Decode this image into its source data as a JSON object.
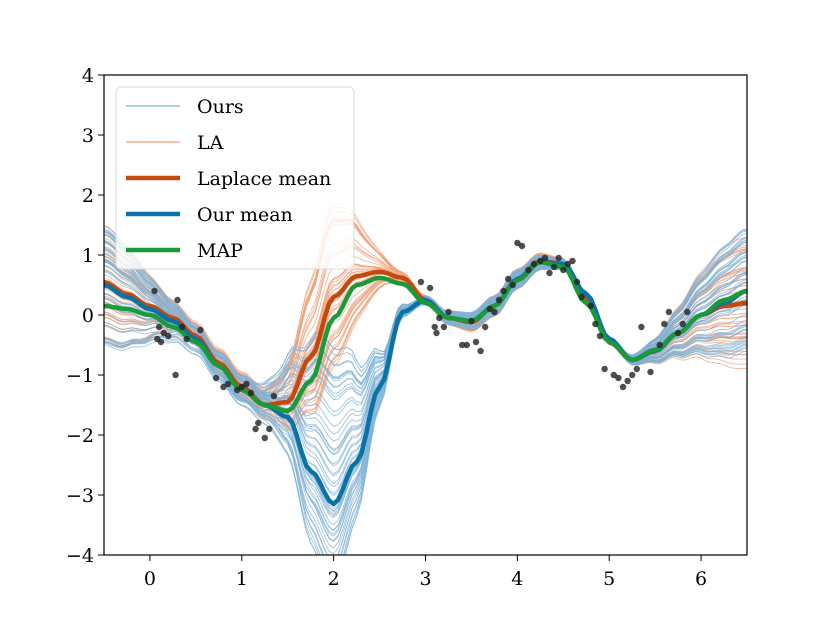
{
  "chart_data": {
    "type": "line",
    "xlim": [
      -0.5,
      6.5
    ],
    "ylim": [
      -4,
      4
    ],
    "xticks": [
      0,
      1,
      2,
      3,
      4,
      5,
      6
    ],
    "yticks": [
      4,
      3,
      2,
      1,
      0,
      -1,
      -2,
      -3,
      -4
    ],
    "xtick_labels": [
      "0",
      "1",
      "2",
      "3",
      "4",
      "5",
      "6"
    ],
    "ytick_labels": [
      "4",
      "3",
      "2",
      "1",
      "0",
      "−1",
      "−2",
      "−3",
      "−4"
    ],
    "legend_position": "top-left",
    "colors": {
      "ours": "#7fb2d5",
      "la": "#f0a07a",
      "laplace_mean": "#c4490f",
      "our_mean": "#0b72a6",
      "map": "#1b9a3a",
      "points": "#222222"
    },
    "legend": [
      {
        "key": "ours",
        "label": "Ours",
        "style": "thin"
      },
      {
        "key": "la",
        "label": "LA",
        "style": "thin"
      },
      {
        "key": "laplace_mean",
        "label": "Laplace mean",
        "style": "thick"
      },
      {
        "key": "our_mean",
        "label": "Our mean",
        "style": "thick"
      },
      {
        "key": "map",
        "label": "MAP",
        "style": "thick"
      }
    ],
    "series": [
      {
        "name": "Laplace mean",
        "key": "laplace_mean",
        "x": [
          -0.5,
          -0.25,
          0,
          0.25,
          0.5,
          0.75,
          1,
          1.25,
          1.5,
          1.75,
          2,
          2.25,
          2.5,
          2.75,
          3,
          3.25,
          3.5,
          3.75,
          4,
          4.25,
          4.5,
          4.75,
          5,
          5.25,
          5.5,
          5.75,
          6,
          6.25,
          6.5
        ],
        "y": [
          0.55,
          0.35,
          0.15,
          -0.05,
          -0.35,
          -0.8,
          -1.2,
          -1.5,
          -1.45,
          -0.7,
          0.3,
          0.65,
          0.72,
          0.62,
          0.25,
          -0.05,
          -0.12,
          0.15,
          0.6,
          0.9,
          0.85,
          0.3,
          -0.45,
          -0.75,
          -0.6,
          -0.3,
          0,
          0.15,
          0.2
        ]
      },
      {
        "name": "Our mean",
        "key": "our_mean",
        "x": [
          -0.5,
          -0.25,
          0,
          0.25,
          0.5,
          0.75,
          1,
          1.25,
          1.5,
          1.75,
          2,
          2.25,
          2.5,
          2.75,
          3,
          3.25,
          3.5,
          3.75,
          4,
          4.25,
          4.5,
          4.75,
          5,
          5.25,
          5.5,
          5.75,
          6,
          6.25,
          6.5
        ],
        "y": [
          0.5,
          0.3,
          0.1,
          -0.1,
          -0.4,
          -0.85,
          -1.25,
          -1.5,
          -1.7,
          -2.6,
          -3.15,
          -2.45,
          -1.2,
          0.05,
          0.25,
          -0.05,
          -0.1,
          0.15,
          0.6,
          0.88,
          0.85,
          0.35,
          -0.4,
          -0.75,
          -0.6,
          -0.3,
          0,
          0.2,
          0.4
        ]
      },
      {
        "name": "MAP",
        "key": "map",
        "x": [
          -0.5,
          -0.25,
          0,
          0.25,
          0.5,
          0.75,
          1,
          1.25,
          1.5,
          1.75,
          2,
          2.25,
          2.5,
          2.75,
          3,
          3.25,
          3.5,
          3.75,
          4,
          4.25,
          4.5,
          4.75,
          5,
          5.25,
          5.5,
          5.75,
          6,
          6.25,
          6.5
        ],
        "y": [
          0.15,
          0.1,
          0,
          -0.2,
          -0.45,
          -0.85,
          -1.25,
          -1.5,
          -1.6,
          -1.1,
          -0.05,
          0.5,
          0.62,
          0.52,
          0.2,
          -0.05,
          -0.1,
          0.15,
          0.58,
          0.88,
          0.8,
          0.2,
          -0.45,
          -0.75,
          -0.58,
          -0.3,
          0,
          0.25,
          0.4
        ]
      }
    ],
    "points": {
      "x": [
        0.05,
        0.08,
        0.1,
        0.12,
        0.15,
        0.2,
        0.3,
        0.28,
        0.35,
        0.4,
        0.55,
        0.72,
        0.8,
        0.85,
        0.95,
        1.0,
        1.05,
        1.1,
        1.18,
        1.15,
        1.25,
        1.3,
        1.35,
        2.95,
        3.05,
        3.1,
        3.12,
        3.15,
        3.2,
        3.25,
        3.4,
        3.45,
        3.5,
        3.55,
        3.6,
        3.65,
        3.7,
        3.75,
        3.8,
        3.85,
        3.9,
        3.95,
        4.0,
        4.05,
        4.12,
        4.18,
        4.25,
        4.3,
        4.35,
        4.4,
        4.45,
        4.5,
        4.55,
        4.6,
        4.65,
        4.7,
        4.8,
        4.85,
        4.9,
        4.95,
        5.05,
        5.1,
        5.15,
        5.2,
        5.25,
        5.3,
        5.35,
        5.45,
        5.55,
        5.6,
        5.65,
        5.75,
        5.8,
        5.85
      ],
      "y": [
        0.4,
        -0.4,
        -0.2,
        -0.45,
        -0.3,
        -0.35,
        0.25,
        -1.0,
        -0.2,
        -0.4,
        -0.25,
        -1.05,
        -1.2,
        -1.15,
        -1.25,
        -1.2,
        -1.15,
        -1.3,
        -1.8,
        -1.9,
        -2.05,
        -1.9,
        -1.35,
        0.55,
        0.45,
        -0.2,
        -0.3,
        -0.05,
        -0.2,
        0.05,
        -0.5,
        -0.5,
        -0.1,
        -0.45,
        -0.6,
        -0.2,
        0.1,
        0.05,
        0.25,
        0.4,
        0.6,
        0.5,
        1.2,
        1.15,
        0.75,
        0.85,
        0.9,
        0.95,
        0.7,
        0.8,
        0.95,
        0.75,
        0.85,
        0.9,
        0.55,
        0.3,
        0.15,
        -0.15,
        -0.35,
        -0.9,
        -1.0,
        -1.05,
        -1.2,
        -1.1,
        -1.0,
        -0.9,
        -0.2,
        -0.95,
        -0.5,
        -0.15,
        0.05,
        -0.3,
        -0.15,
        0.05
      ]
    }
  }
}
